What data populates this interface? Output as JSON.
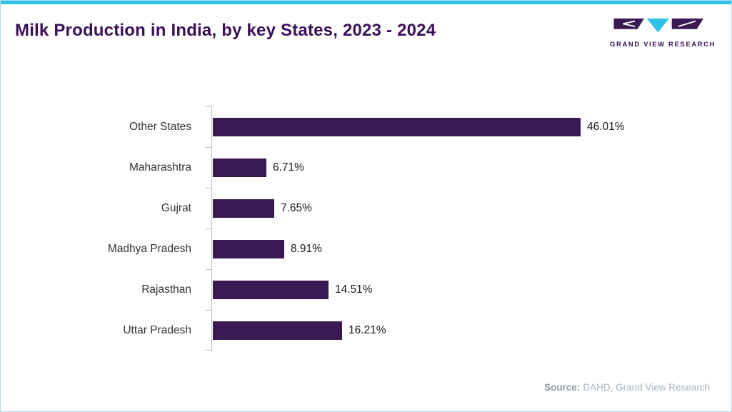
{
  "header": {
    "title": "Milk Production in India, by key States, 2023 - 2024",
    "logo_text": "GRAND VIEW RESEARCH"
  },
  "chart_data": {
    "type": "bar",
    "orientation": "horizontal",
    "title": "Milk Production in India, by key States, 2023 - 2024",
    "categories": [
      "Other States",
      "Maharashtra",
      "Gujrat",
      "Madhya Pradesh",
      "Rajasthan",
      "Uttar Pradesh"
    ],
    "values": [
      46.01,
      6.71,
      7.65,
      8.91,
      14.51,
      16.21
    ],
    "value_labels": [
      "46.01%",
      "6.71%",
      "7.65%",
      "8.91%",
      "14.51%",
      "16.21%"
    ],
    "xlabel": "",
    "ylabel": "",
    "xlim": [
      0,
      50
    ],
    "grid": false,
    "legend": false,
    "bar_color": "#3a1a52"
  },
  "footer": {
    "source_label": "Source:",
    "source_text": "DAHD, Grand View Research"
  },
  "colors": {
    "accent_cyan": "#2fc2e8",
    "brand_purple": "#3c1058",
    "border_blue": "#b5dcee",
    "axis_gray": "#b7bec4",
    "source_gray": "#a9b4bc"
  }
}
